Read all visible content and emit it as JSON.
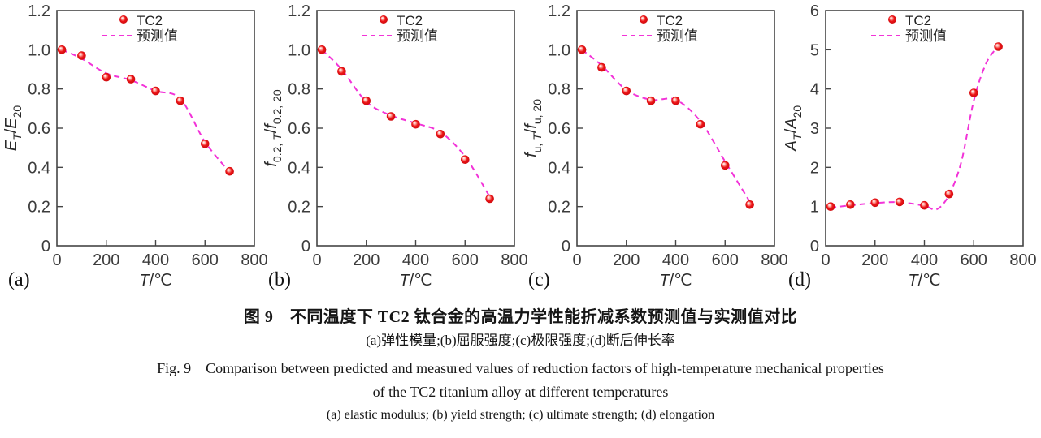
{
  "figure": {
    "caption_cn_title": "图 9　不同温度下 TC2 钛合金的高温力学性能折减系数预测值与实测值对比",
    "caption_cn_sub": "(a)弹性模量;(b)屈服强度;(c)极限强度;(d)断后伸长率",
    "caption_en_line1": "Fig. 9　Comparison between predicted and measured values of reduction factors of high-temperature mechanical properties",
    "caption_en_line2": "of the TC2 titanium alloy at different temperatures",
    "caption_en_sub": "(a) elastic modulus; (b) yield strength; (c) ultimate strength; (d) elongation"
  },
  "colors": {
    "axis": "#454545",
    "tick_text": "#3c3c3c",
    "label_text": "#2a2a2a",
    "panel_text": "#111111",
    "marker_core": "#ee1416",
    "marker_dark": "#c40a0e",
    "marker_highlight": "#ffffff",
    "predicted_line": "#f233d8",
    "legend_text": "#222222"
  },
  "chart_data": [
    {
      "id": "a",
      "type": "scatter",
      "panel_label": "(a)",
      "xlabel": [
        {
          "t": "T",
          "s": "i"
        },
        {
          "t": "/℃",
          "s": "n"
        }
      ],
      "ylabel": [
        {
          "t": "E",
          "s": "i"
        },
        {
          "t": "T",
          "s": "sub_i"
        },
        {
          "t": "/",
          "s": "n"
        },
        {
          "t": "E",
          "s": "i"
        },
        {
          "t": "20",
          "s": "sub"
        }
      ],
      "xlim": [
        0,
        800
      ],
      "ylim": [
        0,
        1.2
      ],
      "x_ticks": [
        0,
        200,
        400,
        600,
        800
      ],
      "x_tick_labels": [
        "0",
        "200",
        "400",
        "600",
        "800"
      ],
      "y_ticks": [
        0,
        0.2,
        0.4,
        0.6,
        0.8,
        1.0,
        1.2
      ],
      "y_tick_labels": [
        "0",
        "0.2",
        "0.4",
        "0.6",
        "0.8",
        "1.0",
        "1.2"
      ],
      "legend": [
        {
          "label": "TC2",
          "marker": "dot"
        },
        {
          "label": "预测值",
          "marker": "dash"
        }
      ],
      "series": [
        {
          "name": "TC2",
          "kind": "measured",
          "points": [
            [
              20,
              1.0
            ],
            [
              100,
              0.97
            ],
            [
              200,
              0.86
            ],
            [
              300,
              0.85
            ],
            [
              400,
              0.79
            ],
            [
              500,
              0.74
            ],
            [
              600,
              0.52
            ],
            [
              700,
              0.38
            ]
          ]
        },
        {
          "name": "预测值",
          "kind": "predicted",
          "points": [
            [
              20,
              1.0
            ],
            [
              100,
              0.955
            ],
            [
              200,
              0.88
            ],
            [
              300,
              0.845
            ],
            [
              400,
              0.79
            ],
            [
              500,
              0.75
            ],
            [
              600,
              0.53
            ],
            [
              700,
              0.375
            ]
          ]
        }
      ]
    },
    {
      "id": "b",
      "type": "scatter",
      "panel_label": "(b)",
      "xlabel": [
        {
          "t": "T",
          "s": "i"
        },
        {
          "t": "/℃",
          "s": "n"
        }
      ],
      "ylabel": [
        {
          "t": "f",
          "s": "i"
        },
        {
          "t": "0.2, ",
          "s": "sub"
        },
        {
          "t": "T",
          "s": "sub_i"
        },
        {
          "t": "/",
          "s": "n"
        },
        {
          "t": "f",
          "s": "i"
        },
        {
          "t": "0.2, 20",
          "s": "sub"
        }
      ],
      "xlim": [
        0,
        800
      ],
      "ylim": [
        0,
        1.2
      ],
      "x_ticks": [
        0,
        200,
        400,
        600,
        800
      ],
      "x_tick_labels": [
        "0",
        "200",
        "400",
        "600",
        "800"
      ],
      "y_ticks": [
        0,
        0.2,
        0.4,
        0.6,
        0.8,
        1.0,
        1.2
      ],
      "y_tick_labels": [
        "0",
        "0.2",
        "0.4",
        "0.6",
        "0.8",
        "1.0",
        "1.2"
      ],
      "legend": [
        {
          "label": "TC2",
          "marker": "dot"
        },
        {
          "label": "预测值",
          "marker": "dash"
        }
      ],
      "series": [
        {
          "name": "TC2",
          "kind": "measured",
          "points": [
            [
              20,
              1.0
            ],
            [
              100,
              0.89
            ],
            [
              200,
              0.74
            ],
            [
              300,
              0.66
            ],
            [
              400,
              0.62
            ],
            [
              500,
              0.57
            ],
            [
              600,
              0.44
            ],
            [
              700,
              0.24
            ]
          ]
        },
        {
          "name": "预测值",
          "kind": "predicted",
          "points": [
            [
              20,
              1.0
            ],
            [
              100,
              0.9
            ],
            [
              200,
              0.735
            ],
            [
              300,
              0.665
            ],
            [
              400,
              0.625
            ],
            [
              500,
              0.58
            ],
            [
              600,
              0.455
            ],
            [
              700,
              0.25
            ]
          ]
        }
      ]
    },
    {
      "id": "c",
      "type": "scatter",
      "panel_label": "(c)",
      "xlabel": [
        {
          "t": "T",
          "s": "i"
        },
        {
          "t": "/℃",
          "s": "n"
        }
      ],
      "ylabel": [
        {
          "t": "f",
          "s": "i"
        },
        {
          "t": "u, ",
          "s": "sub"
        },
        {
          "t": "T",
          "s": "sub_i"
        },
        {
          "t": "/",
          "s": "n"
        },
        {
          "t": "f",
          "s": "i"
        },
        {
          "t": "u, 20",
          "s": "sub"
        }
      ],
      "xlim": [
        0,
        800
      ],
      "ylim": [
        0,
        1.2
      ],
      "x_ticks": [
        0,
        200,
        400,
        600,
        800
      ],
      "x_tick_labels": [
        "0",
        "200",
        "400",
        "600",
        "800"
      ],
      "y_ticks": [
        0,
        0.2,
        0.4,
        0.6,
        0.8,
        1.0,
        1.2
      ],
      "y_tick_labels": [
        "0",
        "0.2",
        "0.4",
        "0.6",
        "0.8",
        "1.0",
        "1.2"
      ],
      "legend": [
        {
          "label": "TC2",
          "marker": "dot"
        },
        {
          "label": "预测值",
          "marker": "dash"
        }
      ],
      "series": [
        {
          "name": "TC2",
          "kind": "measured",
          "points": [
            [
              20,
              1.0
            ],
            [
              100,
              0.91
            ],
            [
              200,
              0.79
            ],
            [
              300,
              0.74
            ],
            [
              400,
              0.74
            ],
            [
              500,
              0.62
            ],
            [
              600,
              0.41
            ],
            [
              700,
              0.21
            ]
          ]
        },
        {
          "name": "预测值",
          "kind": "predicted",
          "points": [
            [
              20,
              1.0
            ],
            [
              100,
              0.92
            ],
            [
              200,
              0.795
            ],
            [
              300,
              0.745
            ],
            [
              400,
              0.745
            ],
            [
              500,
              0.635
            ],
            [
              600,
              0.43
            ],
            [
              700,
              0.225
            ]
          ]
        }
      ]
    },
    {
      "id": "d",
      "type": "scatter",
      "panel_label": "(d)",
      "xlabel": [
        {
          "t": "T",
          "s": "i"
        },
        {
          "t": "/℃",
          "s": "n"
        }
      ],
      "ylabel": [
        {
          "t": "A",
          "s": "i"
        },
        {
          "t": "T",
          "s": "sub_i"
        },
        {
          "t": "/",
          "s": "n"
        },
        {
          "t": "A",
          "s": "i"
        },
        {
          "t": "20",
          "s": "sub"
        }
      ],
      "xlim": [
        0,
        800
      ],
      "ylim": [
        0,
        6
      ],
      "x_ticks": [
        0,
        200,
        400,
        600,
        800
      ],
      "x_tick_labels": [
        "0",
        "200",
        "400",
        "600",
        "800"
      ],
      "y_ticks": [
        0,
        1,
        2,
        3,
        4,
        5,
        6
      ],
      "y_tick_labels": [
        "0",
        "1",
        "2",
        "3",
        "4",
        "5",
        "6"
      ],
      "legend": [
        {
          "label": "TC2",
          "marker": "dot"
        },
        {
          "label": "预测值",
          "marker": "dash"
        }
      ],
      "series": [
        {
          "name": "TC2",
          "kind": "measured",
          "points": [
            [
              20,
              1.0
            ],
            [
              100,
              1.05
            ],
            [
              200,
              1.1
            ],
            [
              300,
              1.12
            ],
            [
              400,
              1.03
            ],
            [
              500,
              1.32
            ],
            [
              600,
              3.9
            ],
            [
              700,
              5.08
            ]
          ]
        },
        {
          "name": "预测值",
          "kind": "predicted",
          "points": [
            [
              20,
              0.97
            ],
            [
              100,
              1.03
            ],
            [
              200,
              1.09
            ],
            [
              300,
              1.11
            ],
            [
              400,
              1.02
            ],
            [
              450,
              0.93
            ],
            [
              500,
              1.3
            ],
            [
              550,
              2.15
            ],
            [
              600,
              3.7
            ],
            [
              650,
              4.65
            ],
            [
              700,
              5.1
            ]
          ]
        }
      ]
    }
  ]
}
